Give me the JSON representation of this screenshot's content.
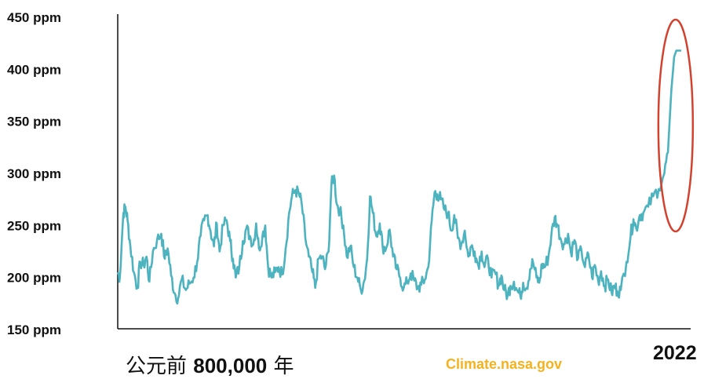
{
  "chart_data": {
    "type": "line",
    "title": "",
    "xlabel_start": "公元前 800,000 年",
    "xlabel_start_parts": [
      "公元前 ",
      "800,000",
      " 年"
    ],
    "xlabel_end": "2022",
    "ylabel": "",
    "y_ticks": [
      "450 ppm",
      "400 ppm",
      "350 ppm",
      "300 ppm",
      "250 ppm",
      "200 ppm",
      "150 ppm"
    ],
    "y_tick_values": [
      450,
      400,
      350,
      300,
      250,
      200,
      150
    ],
    "ylim": [
      150,
      450
    ],
    "xlim": [
      -800000,
      2022
    ],
    "grid": false,
    "series_color": "#4db3bf",
    "highlight_color": "#d2432f",
    "highlight": "ellipse around modern spike",
    "series": [
      {
        "points": [
          [
            -800000,
            205
          ],
          [
            -797000,
            200
          ],
          [
            -792000,
            262
          ],
          [
            -789000,
            268
          ],
          [
            -786000,
            255
          ],
          [
            -782000,
            230
          ],
          [
            -777000,
            205
          ],
          [
            -772000,
            190
          ],
          [
            -768000,
            215
          ],
          [
            -763000,
            212
          ],
          [
            -759000,
            220
          ],
          [
            -755000,
            196
          ],
          [
            -750000,
            225
          ],
          [
            -744000,
            236
          ],
          [
            -738000,
            242
          ],
          [
            -733000,
            218
          ],
          [
            -729000,
            228
          ],
          [
            -724000,
            202
          ],
          [
            -719000,
            185
          ],
          [
            -714000,
            180
          ],
          [
            -709000,
            198
          ],
          [
            -703000,
            188
          ],
          [
            -698000,
            194
          ],
          [
            -692000,
            200
          ],
          [
            -687000,
            215
          ],
          [
            -682000,
            240
          ],
          [
            -677000,
            255
          ],
          [
            -672000,
            260
          ],
          [
            -668000,
            245
          ],
          [
            -663000,
            230
          ],
          [
            -659000,
            252
          ],
          [
            -655000,
            225
          ],
          [
            -650000,
            250
          ],
          [
            -645000,
            255
          ],
          [
            -640000,
            235
          ],
          [
            -636000,
            218
          ],
          [
            -632000,
            200
          ],
          [
            -627000,
            210
          ],
          [
            -622000,
            235
          ],
          [
            -617000,
            247
          ],
          [
            -612000,
            240
          ],
          [
            -607000,
            232
          ],
          [
            -603000,
            252
          ],
          [
            -599000,
            228
          ],
          [
            -594000,
            240
          ],
          [
            -590000,
            250
          ],
          [
            -586000,
            210
          ],
          [
            -581000,
            200
          ],
          [
            -576000,
            205
          ],
          [
            -571000,
            210
          ],
          [
            -566000,
            203
          ],
          [
            -561000,
            228
          ],
          [
            -556000,
            262
          ],
          [
            -552000,
            278
          ],
          [
            -547000,
            284
          ],
          [
            -542000,
            280
          ],
          [
            -538000,
            270
          ],
          [
            -533000,
            238
          ],
          [
            -528000,
            220
          ],
          [
            -523000,
            205
          ],
          [
            -519000,
            190
          ],
          [
            -514000,
            218
          ],
          [
            -509000,
            220
          ],
          [
            -505000,
            208
          ],
          [
            -500000,
            225
          ],
          [
            -496000,
            288
          ],
          [
            -492000,
            298
          ],
          [
            -488000,
            270
          ],
          [
            -484000,
            265
          ],
          [
            -479000,
            250
          ],
          [
            -474000,
            220
          ],
          [
            -469000,
            230
          ],
          [
            -464000,
            210
          ],
          [
            -459000,
            200
          ],
          [
            -454000,
            188
          ],
          [
            -449000,
            197
          ],
          [
            -445000,
            218
          ],
          [
            -441000,
            278
          ],
          [
            -437000,
            262
          ],
          [
            -432000,
            240
          ],
          [
            -427000,
            252
          ],
          [
            -423000,
            230
          ],
          [
            -418000,
            228
          ],
          [
            -413000,
            246
          ],
          [
            -408000,
            220
          ],
          [
            -403000,
            208
          ],
          [
            -398000,
            200
          ],
          [
            -393000,
            190
          ],
          [
            -388000,
            195
          ],
          [
            -383000,
            204
          ],
          [
            -378000,
            197
          ],
          [
            -373000,
            190
          ],
          [
            -368000,
            193
          ],
          [
            -363000,
            198
          ],
          [
            -358000,
            210
          ],
          [
            -353000,
            255
          ],
          [
            -349000,
            282
          ],
          [
            -345000,
            280
          ],
          [
            -340000,
            275
          ],
          [
            -335000,
            265
          ],
          [
            -330000,
            262
          ],
          [
            -325000,
            245
          ],
          [
            -321000,
            260
          ],
          [
            -316000,
            238
          ],
          [
            -311000,
            232
          ],
          [
            -306000,
            245
          ],
          [
            -301000,
            220
          ],
          [
            -297000,
            230
          ],
          [
            -292000,
            225
          ],
          [
            -287000,
            212
          ],
          [
            -282000,
            225
          ],
          [
            -278000,
            210
          ],
          [
            -273000,
            218
          ],
          [
            -268000,
            200
          ],
          [
            -263000,
            205
          ],
          [
            -258000,
            193
          ],
          [
            -254000,
            202
          ],
          [
            -250000,
            188
          ],
          [
            -245000,
            183
          ],
          [
            -241000,
            192
          ],
          [
            -236000,
            196
          ],
          [
            -232000,
            188
          ],
          [
            -227000,
            182
          ],
          [
            -223000,
            195
          ],
          [
            -218000,
            190
          ],
          [
            -213000,
            208
          ],
          [
            -209000,
            215
          ],
          [
            -204000,
            200
          ],
          [
            -200000,
            195
          ],
          [
            -196000,
            213
          ],
          [
            -192000,
            210
          ],
          [
            -187000,
            220
          ],
          [
            -183000,
            240
          ],
          [
            -178000,
            258
          ],
          [
            -174000,
            250
          ],
          [
            -169000,
            236
          ],
          [
            -164000,
            232
          ],
          [
            -159000,
            242
          ],
          [
            -155000,
            224
          ],
          [
            -150000,
            236
          ],
          [
            -145000,
            218
          ],
          [
            -140000,
            226
          ],
          [
            -135000,
            210
          ],
          [
            -130000,
            222
          ],
          [
            -125000,
            200
          ],
          [
            -121000,
            212
          ],
          [
            -116000,
            196
          ],
          [
            -112000,
            206
          ],
          [
            -107000,
            192
          ],
          [
            -102000,
            198
          ],
          [
            -97000,
            185
          ],
          [
            -93000,
            192
          ],
          [
            -89000,
            187
          ],
          [
            -84000,
            188
          ],
          [
            -76000,
            215
          ],
          [
            -70000,
            240
          ],
          [
            -66000,
            256
          ],
          [
            -62000,
            247
          ],
          [
            -57000,
            260
          ],
          [
            -52000,
            262
          ],
          [
            -45000,
            268
          ],
          [
            -38000,
            278
          ],
          [
            -30000,
            285
          ],
          [
            -22000,
            300
          ],
          [
            -17000,
            320
          ],
          [
            -12000,
            380
          ],
          [
            -8000,
            412
          ],
          [
            -5000,
            418
          ],
          [
            2022,
            418
          ]
        ]
      }
    ]
  },
  "source": {
    "label": "Climate.nasa.gov",
    "color": "#f5b21f"
  }
}
